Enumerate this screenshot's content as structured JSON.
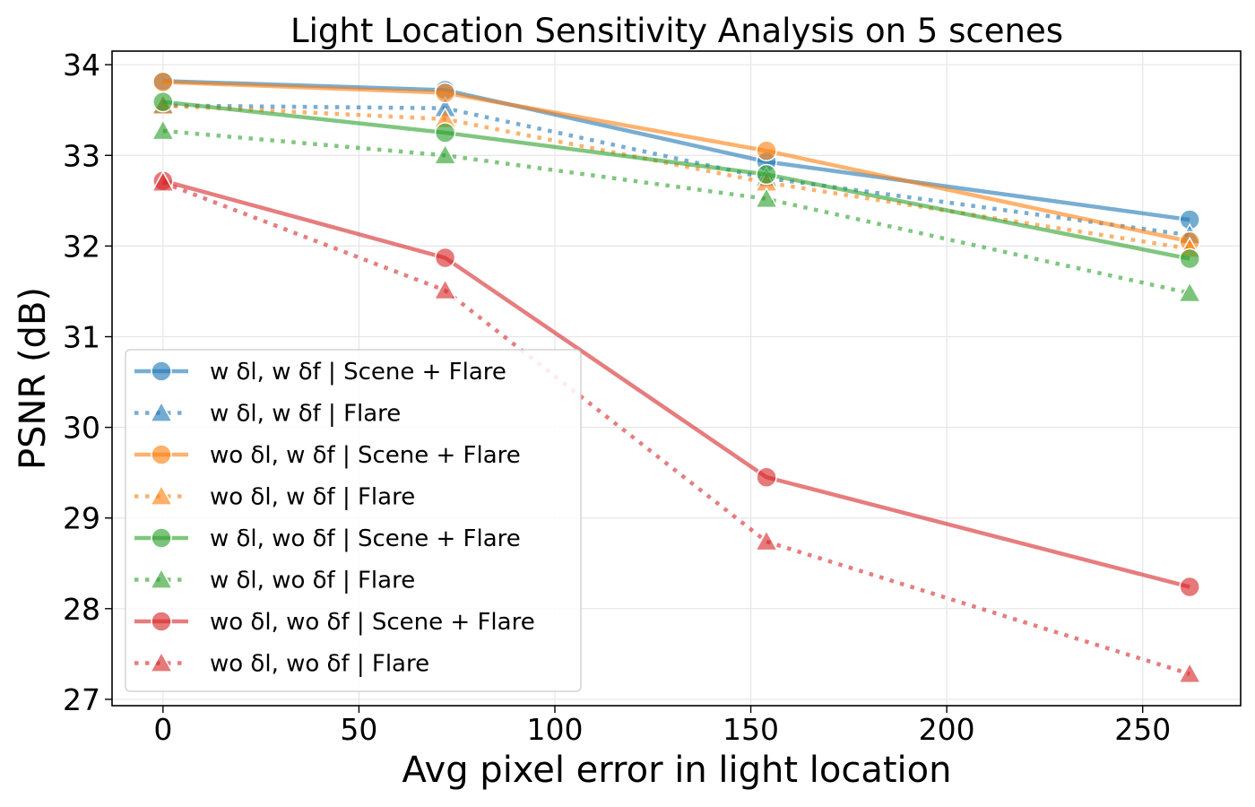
{
  "chart_data": {
    "type": "line",
    "title": "Light Location Sensitivity Analysis on 5 scenes",
    "xlabel": "Avg pixel error in light location",
    "ylabel": "PSNR (dB)",
    "x": [
      0,
      72,
      154,
      262
    ],
    "xlim": [
      -13,
      275
    ],
    "ylim": [
      26.93,
      34.15
    ],
    "xticks": [
      0,
      50,
      100,
      150,
      200,
      250
    ],
    "yticks": [
      27,
      28,
      29,
      30,
      31,
      32,
      33,
      34
    ],
    "grid": true,
    "legend_position": "lower-left",
    "series": [
      {
        "name": "w δl, w δf | Scene + Flare",
        "color": "#1f77b4",
        "style": "solid",
        "marker": "circle",
        "values": [
          33.82,
          33.72,
          32.93,
          32.29
        ]
      },
      {
        "name": "w δl, w δf | Flare",
        "color": "#1f77b4",
        "style": "dotted",
        "marker": "triangle",
        "values": [
          33.55,
          33.52,
          32.75,
          32.12
        ]
      },
      {
        "name": "wo δl, w δf | Scene + Flare",
        "color": "#ff7f0e",
        "style": "solid",
        "marker": "circle",
        "values": [
          33.81,
          33.69,
          33.05,
          32.05
        ]
      },
      {
        "name": "wo δl, w δf | Flare",
        "color": "#ff7f0e",
        "style": "dotted",
        "marker": "triangle",
        "values": [
          33.55,
          33.4,
          32.7,
          31.97
        ]
      },
      {
        "name": "w δl, wo δf | Scene + Flare",
        "color": "#2ca02c",
        "style": "solid",
        "marker": "circle",
        "values": [
          33.59,
          33.25,
          32.79,
          31.86
        ]
      },
      {
        "name": "w δl, wo δf | Flare",
        "color": "#2ca02c",
        "style": "dotted",
        "marker": "triangle",
        "values": [
          33.27,
          33.0,
          32.52,
          31.48
        ]
      },
      {
        "name": "wo δl, wo δf | Scene + Flare",
        "color": "#d62728",
        "style": "solid",
        "marker": "circle",
        "values": [
          32.72,
          31.87,
          29.45,
          28.24
        ]
      },
      {
        "name": "wo δl, wo δf | Flare",
        "color": "#d62728",
        "style": "dotted",
        "marker": "triangle",
        "values": [
          32.7,
          31.51,
          28.74,
          27.28
        ]
      }
    ]
  }
}
